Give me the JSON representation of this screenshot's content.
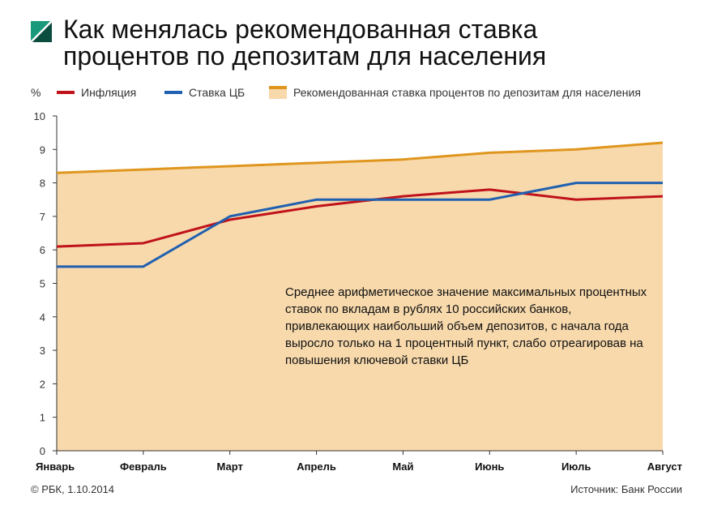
{
  "title_lines": [
    "Как менялась рекомендованная ставка",
    "процентов по депозитам для населения"
  ],
  "unit_label": "%",
  "legend": [
    {
      "label": "Инфляция",
      "color": "#c0121a"
    },
    {
      "label": "Ставка ЦБ",
      "color": "#2060b0"
    },
    {
      "label": "Рекомендованная ставка процентов по депозитам для населения",
      "color": "#e0961e",
      "fill": "#f7d9ac"
    }
  ],
  "annotation": "Среднее арифметическое значение максимальных процентных ставок по вкладам в рублях 10 российских банков, привлекающих наибольший объем депозитов, с начала года выросло только на 1 процентный пункт, слабо отреагировав на повышения ключевой ставки ЦБ",
  "footer": {
    "left": "© РБК, 1.10.2014",
    "right": "Источник: Банк России"
  },
  "chart_data": {
    "type": "line",
    "categories": [
      "Январь",
      "Февраль",
      "Март",
      "Апрель",
      "Май",
      "Июнь",
      "Июль",
      "Август"
    ],
    "ylim": [
      0,
      10
    ],
    "yticks": [
      0,
      1,
      2,
      3,
      4,
      5,
      6,
      7,
      8,
      9,
      10
    ],
    "grid": false,
    "series": [
      {
        "name": "Инфляция",
        "color": "#c0121a",
        "style": "line",
        "values": [
          6.1,
          6.2,
          6.9,
          7.3,
          7.6,
          7.8,
          7.5,
          7.6
        ]
      },
      {
        "name": "Ставка ЦБ",
        "color": "#2060b0",
        "style": "line",
        "values": [
          5.5,
          5.5,
          7.0,
          7.5,
          7.5,
          7.5,
          8.0,
          8.0
        ]
      },
      {
        "name": "Рекомендованная ставка процентов по депозитам для населения",
        "color": "#e0961e",
        "fill": "#f7d9ac",
        "style": "area",
        "values": [
          8.3,
          8.4,
          8.5,
          8.6,
          8.7,
          8.9,
          9.0,
          9.2
        ]
      }
    ]
  }
}
